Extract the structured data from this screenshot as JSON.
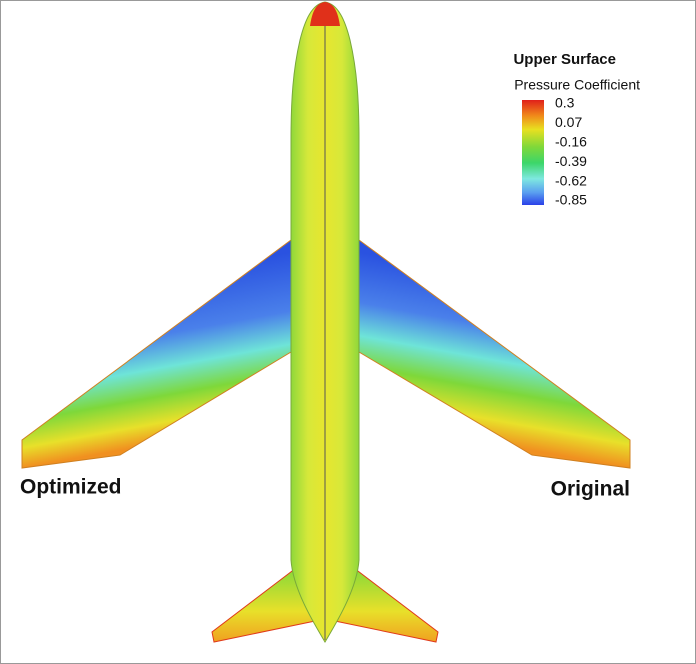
{
  "figure": {
    "legend": {
      "title": "Upper Surface",
      "subtitle": "Pressure Coefficient",
      "ticks": [
        "0.3",
        "0.07",
        "-0.16",
        "-0.39",
        "-0.62",
        "-0.85"
      ]
    },
    "labels": {
      "left": "Optimized",
      "right": "Original"
    }
  }
}
